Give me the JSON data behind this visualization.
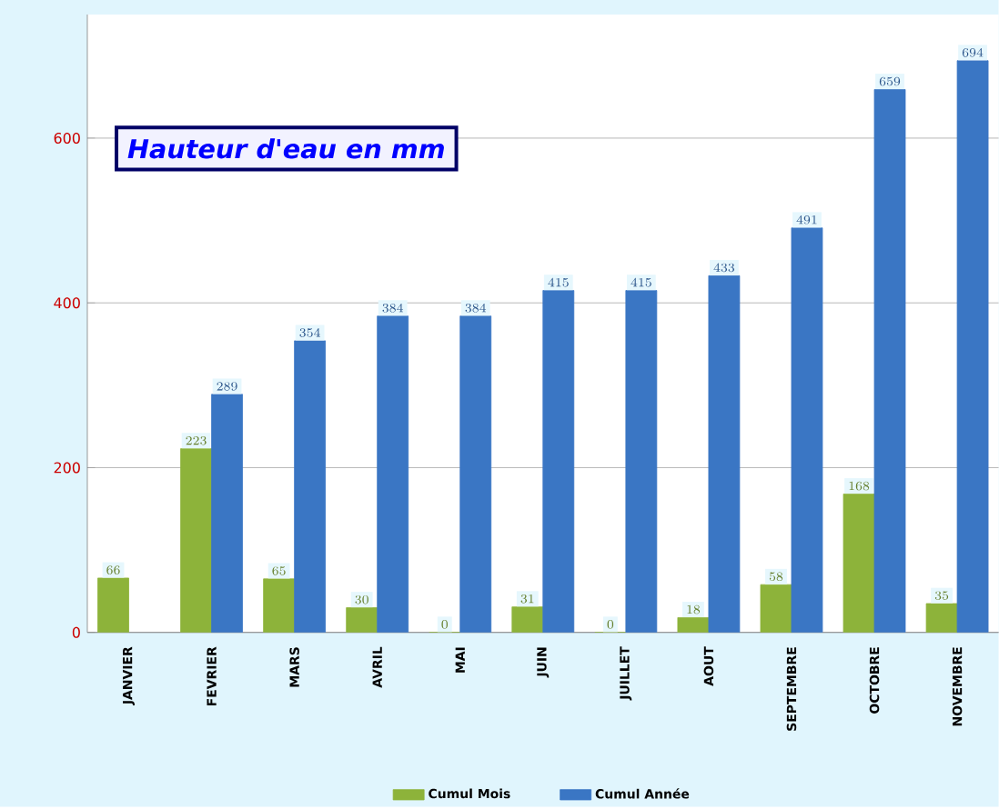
{
  "chart_data": {
    "type": "bar",
    "title": "Hauteur d'eau en mm",
    "categories": [
      "JANVIER",
      "FEVRIER",
      "MARS",
      "AVRIL",
      "MAI",
      "JUIN",
      "JUILLET",
      "AOUT",
      "SEPTEMBRE",
      "OCTOBRE",
      "NOVEMBRE"
    ],
    "series": [
      {
        "name": "Cumul Mois",
        "color": "#8db33a",
        "values": [
          66,
          223,
          65,
          30,
          0,
          31,
          0,
          18,
          58,
          168,
          35
        ]
      },
      {
        "name": "Cumul Année",
        "color": "#3a76c4",
        "values": [
          null,
          289,
          354,
          384,
          384,
          415,
          415,
          433,
          491,
          659,
          694
        ]
      }
    ],
    "ylim": [
      0,
      750
    ],
    "yticks": [
      0,
      200,
      400,
      600
    ],
    "grid": "y",
    "legend": "bottom",
    "data_labels": true
  }
}
